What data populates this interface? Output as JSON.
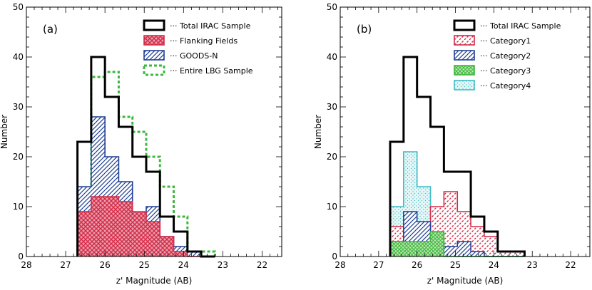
{
  "chart_data": [
    {
      "type": "bar",
      "panel_label": "(a)",
      "xlabel": "z' Magnitude (AB)",
      "ylabel": "Number",
      "xlim": [
        28,
        21.5
      ],
      "ylim": [
        0,
        50
      ],
      "xticks": [
        28,
        27,
        26,
        25,
        24,
        23,
        22
      ],
      "yticks": [
        0,
        10,
        20,
        30,
        40,
        50
      ],
      "bin_edges": [
        26.7,
        26.35,
        26.0,
        25.65,
        25.3,
        24.95,
        24.6,
        24.25,
        23.9,
        23.55,
        23.2
      ],
      "legend_position": "top-right",
      "series": [
        {
          "name": "Total IRAC Sample",
          "style": "outline-black",
          "color": "#000000",
          "values": [
            23,
            40,
            32,
            26,
            20,
            17,
            8,
            5,
            1,
            0
          ]
        },
        {
          "name": "Entire LBG Sample",
          "style": "outline-dotted",
          "color": "#3cb83c",
          "values": [
            7,
            36,
            37,
            28,
            25,
            20,
            14,
            8,
            1,
            1
          ]
        },
        {
          "name": "GOODS-N",
          "style": "hatch-blue",
          "color": "#1f3f93",
          "values": [
            14,
            28,
            20,
            15,
            8,
            10,
            4,
            2,
            1,
            0
          ]
        },
        {
          "name": "Flanking Fields",
          "style": "hatch-red",
          "color": "#d42a47",
          "values": [
            9,
            12,
            12,
            11,
            9,
            7,
            4,
            1,
            0,
            0
          ]
        }
      ],
      "legend": [
        "Total IRAC Sample",
        "Flanking Fields",
        "GOODS-N",
        "Entire LBG Sample"
      ]
    },
    {
      "type": "bar",
      "panel_label": "(b)",
      "xlabel": "z' Magnitude (AB)",
      "ylabel": "Number",
      "xlim": [
        28,
        21.5
      ],
      "ylim": [
        0,
        50
      ],
      "xticks": [
        28,
        27,
        26,
        25,
        24,
        23,
        22
      ],
      "yticks": [
        0,
        10,
        20,
        30,
        40,
        50
      ],
      "bin_edges": [
        26.7,
        26.35,
        26.0,
        25.65,
        25.3,
        24.95,
        24.6,
        24.25,
        23.9,
        23.55,
        23.2
      ],
      "legend_position": "top-right",
      "series": [
        {
          "name": "Total IRAC Sample",
          "style": "outline-black",
          "color": "#000000",
          "values": [
            23,
            40,
            32,
            26,
            17,
            17,
            8,
            5,
            1,
            1
          ]
        },
        {
          "name": "Category4",
          "style": "dots-cyan",
          "color": "#3cbcc4",
          "values": [
            10,
            21,
            14,
            8,
            3,
            0,
            0,
            0,
            0,
            0
          ]
        },
        {
          "name": "Category1",
          "style": "hatch-red-dash",
          "color": "#d42a47",
          "values": [
            6,
            4,
            4,
            10,
            13,
            9,
            6,
            4,
            1,
            1
          ]
        },
        {
          "name": "Category2",
          "style": "hatch-blue",
          "color": "#1f3f93",
          "values": [
            3,
            9,
            7,
            3,
            2,
            3,
            1,
            0,
            0,
            0
          ]
        },
        {
          "name": "Category3",
          "style": "hatch-green",
          "color": "#3cb83c",
          "values": [
            3,
            3,
            3,
            5,
            0,
            0,
            0,
            0,
            0,
            0
          ]
        }
      ],
      "legend": [
        "Total IRAC Sample",
        "Category1",
        "Category2",
        "Category3",
        "Category4"
      ]
    }
  ]
}
